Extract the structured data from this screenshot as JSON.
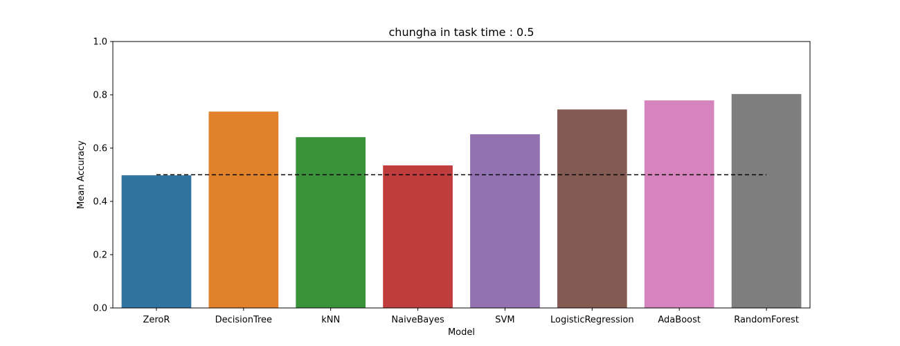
{
  "chart_data": {
    "type": "bar",
    "title": "chungha in task time : 0.5",
    "xlabel": "Model",
    "ylabel": "Mean Accuracy",
    "categories": [
      "ZeroR",
      "DecisionTree",
      "kNN",
      "NaiveBayes",
      "SVM",
      "LogisticRegression",
      "AdaBoost",
      "RandomForest"
    ],
    "values": [
      0.498,
      0.737,
      0.641,
      0.535,
      0.652,
      0.745,
      0.779,
      0.803
    ],
    "colors": [
      "#3274a1",
      "#e1812c",
      "#3a923a",
      "#c03d3e",
      "#9372b2",
      "#845b53",
      "#d684bd",
      "#7f7f7f"
    ],
    "ylim": [
      0,
      1.0
    ],
    "yticks": [
      "0.0",
      "0.2",
      "0.4",
      "0.6",
      "0.8",
      "1.0"
    ],
    "baseline": {
      "value": 0.5,
      "style": "dashed",
      "color": "#000000"
    },
    "grid": false,
    "legend": "none"
  }
}
